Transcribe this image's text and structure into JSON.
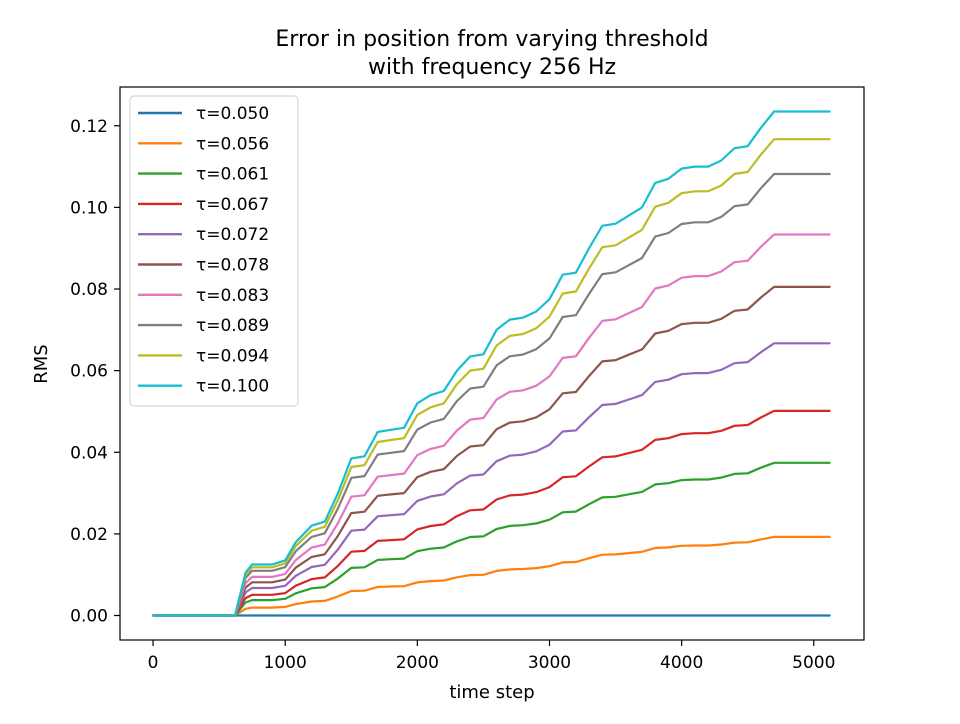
{
  "chart_data": {
    "type": "line",
    "title_line1": "Error in position from varying threshold",
    "title_line2": "with frequency 256 Hz",
    "xlabel": "time step",
    "ylabel": "RMS",
    "xlim": [
      -250,
      5380
    ],
    "ylim": [
      -0.006,
      0.1295
    ],
    "xticks": [
      0,
      1000,
      2000,
      3000,
      4000,
      5000
    ],
    "xtick_labels": [
      "0",
      "1000",
      "2000",
      "3000",
      "4000",
      "5000"
    ],
    "yticks": [
      0.0,
      0.02,
      0.04,
      0.06,
      0.08,
      0.1,
      0.12
    ],
    "ytick_labels": [
      "0.00",
      "0.02",
      "0.04",
      "0.06",
      "0.08",
      "0.10",
      "0.12"
    ],
    "grid": false,
    "legend_position": "upper-left",
    "x": [
      0,
      620,
      700,
      750,
      800,
      900,
      1000,
      1080,
      1200,
      1300,
      1400,
      1500,
      1600,
      1700,
      1800,
      1900,
      2000,
      2100,
      2200,
      2300,
      2400,
      2500,
      2600,
      2700,
      2800,
      2900,
      3000,
      3100,
      3200,
      3300,
      3400,
      3500,
      3600,
      3700,
      3800,
      3900,
      4000,
      4100,
      4200,
      4300,
      4400,
      4500,
      4600,
      4700,
      4750,
      5120
    ],
    "series": [
      {
        "name": "τ=0.050",
        "color": "#1f77b4",
        "scale": 0.0
      },
      {
        "name": "τ=0.056",
        "color": "#ff7f0e",
        "scale": 0.156
      },
      {
        "name": "τ=0.061",
        "color": "#2ca02c",
        "scale": 0.303
      },
      {
        "name": "τ=0.067",
        "color": "#d62728",
        "scale": 0.406
      },
      {
        "name": "τ=0.072",
        "color": "#9467bd",
        "scale": 0.54
      },
      {
        "name": "τ=0.078",
        "color": "#8c564b",
        "scale": 0.652
      },
      {
        "name": "τ=0.083",
        "color": "#e377c2",
        "scale": 0.756
      },
      {
        "name": "τ=0.089",
        "color": "#7f7f7f",
        "scale": 0.876
      },
      {
        "name": "τ=0.094",
        "color": "#bcbd22",
        "scale": 0.945
      },
      {
        "name": "τ=0.100",
        "color": "#17becf",
        "scale": 1.0
      }
    ],
    "top_series_values": [
      0.0,
      0.0,
      0.0105,
      0.0125,
      0.0125,
      0.0125,
      0.0135,
      0.018,
      0.022,
      0.023,
      0.03,
      0.0385,
      0.039,
      0.045,
      0.0455,
      0.046,
      0.052,
      0.054,
      0.055,
      0.06,
      0.0635,
      0.064,
      0.07,
      0.0725,
      0.073,
      0.0745,
      0.0775,
      0.0835,
      0.084,
      0.09,
      0.0955,
      0.096,
      0.098,
      0.1,
      0.106,
      0.107,
      0.1095,
      0.11,
      0.11,
      0.1115,
      0.1145,
      0.115,
      0.1195,
      0.1235,
      0.1235,
      0.1235
    ]
  }
}
